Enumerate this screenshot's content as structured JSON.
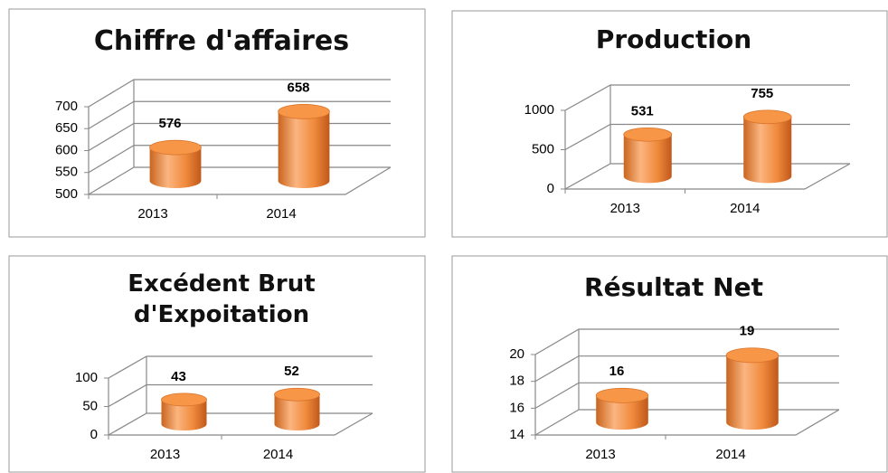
{
  "chart_data": [
    {
      "type": "bar",
      "title": "Chiffre d'affaires",
      "categories": [
        "2013",
        "2014"
      ],
      "values": [
        576,
        658
      ],
      "color": "#f79646",
      "ylim": [
        500,
        700
      ],
      "yticks": [
        500,
        550,
        600,
        650,
        700
      ],
      "grid": true
    },
    {
      "type": "bar",
      "title": "Production",
      "categories": [
        "2013",
        "2014"
      ],
      "values": [
        531,
        755
      ],
      "color": "#f79646",
      "ylim": [
        0,
        1000
      ],
      "yticks": [
        0,
        500,
        1000
      ],
      "grid": true
    },
    {
      "type": "bar",
      "title": "Excédent Brut d'Expoitation",
      "categories": [
        "2013",
        "2014"
      ],
      "values": [
        43,
        52
      ],
      "color": "#f79646",
      "ylim": [
        0,
        100
      ],
      "yticks": [
        0,
        50,
        100
      ],
      "grid": true
    },
    {
      "type": "bar",
      "title": "Résultat Net",
      "categories": [
        "2013",
        "2014"
      ],
      "values": [
        16,
        19
      ],
      "color": "#f79646",
      "ylim": [
        14,
        20
      ],
      "yticks": [
        14,
        16,
        18,
        20
      ],
      "grid": true
    }
  ]
}
